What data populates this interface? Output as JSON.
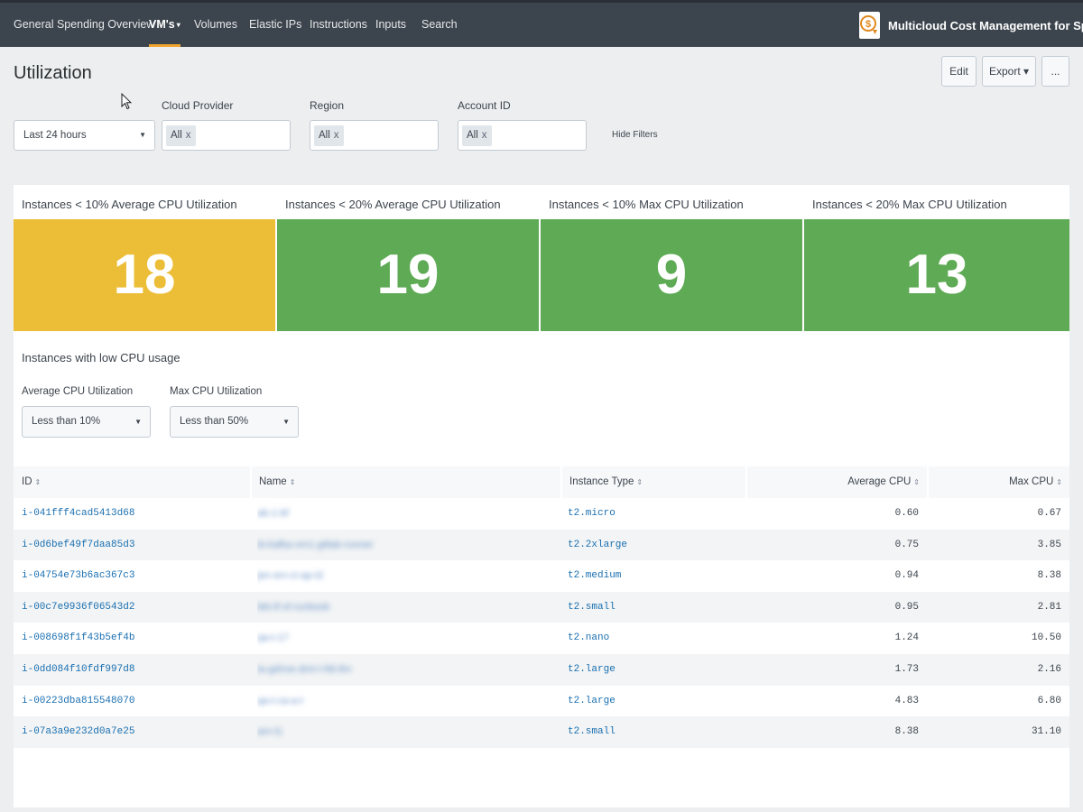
{
  "nav": {
    "items": [
      {
        "label": "General Spending Overview"
      },
      {
        "label": "VM's",
        "caret": "▾"
      },
      {
        "label": "Volumes"
      },
      {
        "label": "Elastic IPs"
      },
      {
        "label": "Instructions"
      },
      {
        "label": "Inputs"
      },
      {
        "label": "Search"
      }
    ],
    "app_title": "Multicloud Cost Management for Splunk"
  },
  "page": {
    "title": "Utilization",
    "buttons": {
      "edit": "Edit",
      "export": "Export ▾",
      "more": "..."
    }
  },
  "filters": {
    "time": {
      "value": "Last 24 hours"
    },
    "cloud_provider": {
      "label": "Cloud Provider",
      "tag": "All",
      "remove": "x"
    },
    "region": {
      "label": "Region",
      "tag": "All",
      "remove": "x"
    },
    "account_id": {
      "label": "Account ID",
      "tag": "All",
      "remove": "x"
    },
    "hide_filters": "Hide Filters"
  },
  "single_values": [
    {
      "title": "Instances < 10% Average CPU Utilization",
      "value": "18",
      "color": "#ecbe38"
    },
    {
      "title": "Instances < 20% Average CPU Utilization",
      "value": "19",
      "color": "#5eaa55"
    },
    {
      "title": "Instances < 10% Max CPU Utilization",
      "value": "9",
      "color": "#5eaa55"
    },
    {
      "title": "Instances < 20% Max CPU Utilization",
      "value": "13",
      "color": "#5eaa55"
    }
  ],
  "low_cpu": {
    "title": "Instances with low CPU usage",
    "avg_input": {
      "label": "Average CPU Utilization",
      "value": "Less than 10%"
    },
    "max_input": {
      "label": "Max CPU Utilization",
      "value": "Less than 50%"
    }
  },
  "table": {
    "columns": [
      "ID",
      "Name",
      "Instance Type",
      "Average CPU",
      "Max CPU"
    ],
    "sort_glyph": "⇕",
    "rows": [
      {
        "id": "i-041fff4cad5413d68",
        "name": "ab-1-bf",
        "type": "t2.micro",
        "avg": "0.60",
        "max": "0.67"
      },
      {
        "id": "i-0d6bef49f7daa85d3",
        "name": "bi-kafka-vm1-gitlab-runner",
        "type": "t2.2xlarge",
        "avg": "0.75",
        "max": "3.85"
      },
      {
        "id": "i-04754e73b6ac367c3",
        "name": "jen-srv-ci-ap-t2",
        "type": "t2.medium",
        "avg": "0.94",
        "max": "8.38"
      },
      {
        "id": "i-00c7e9936f06543d2",
        "name": "bkt-tf-xf-runbook",
        "type": "t2.small",
        "avg": "0.95",
        "max": "2.81"
      },
      {
        "id": "i-008698f1f43b5ef4b",
        "name": "qa-t-17",
        "type": "t2.nano",
        "avg": "1.24",
        "max": "10.50"
      },
      {
        "id": "i-0dd084f10fdf997d8",
        "name": "la-gdrive-dmt-t-fdt-llm",
        "type": "t2.large",
        "avg": "1.73",
        "max": "2.16"
      },
      {
        "id": "i-00223dba815548070",
        "name": "qa-t-ca-a-t",
        "type": "t2.large",
        "avg": "4.83",
        "max": "6.80"
      },
      {
        "id": "i-07a3a9e232d0a7e25",
        "name": "am-t1",
        "type": "t2.small",
        "avg": "8.38",
        "max": "31.10"
      }
    ]
  }
}
